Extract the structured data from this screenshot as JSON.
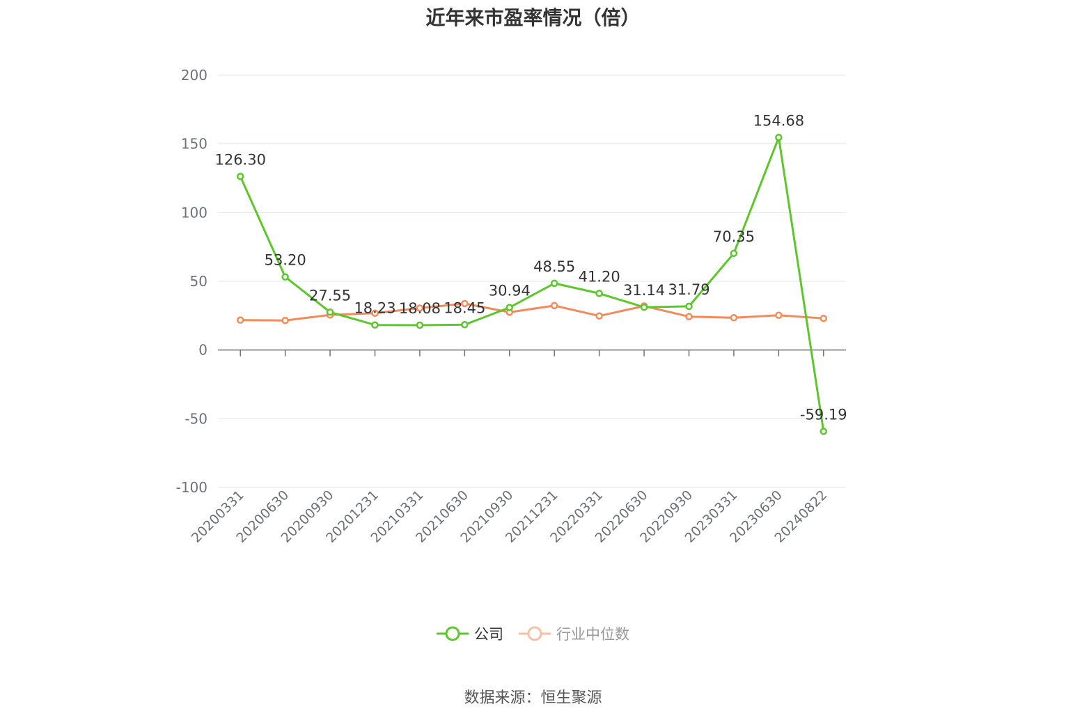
{
  "chart_data": {
    "type": "line",
    "title": "近年来市盈率情况（倍）",
    "categories": [
      "20200331",
      "20200630",
      "20200930",
      "20201231",
      "20210331",
      "20210630",
      "20210930",
      "20211231",
      "20220331",
      "20220630",
      "20220930",
      "20230331",
      "20230630",
      "20240822"
    ],
    "series": [
      {
        "name": "公司",
        "color": "#5cc72b",
        "values": [
          126.3,
          53.2,
          27.55,
          18.23,
          18.08,
          18.45,
          30.94,
          48.55,
          41.2,
          31.14,
          31.79,
          70.35,
          154.68,
          -59.19
        ],
        "labels": [
          "126.30",
          "53.20",
          "27.55",
          "18.23",
          "18.08",
          "18.45",
          "30.94",
          "48.55",
          "41.20",
          "31.14",
          "31.79",
          "70.35",
          "154.68",
          "-59.19"
        ]
      },
      {
        "name": "行业中位数",
        "color": "#f28b5b",
        "values": [
          21.8,
          21.5,
          25.5,
          26.8,
          30.5,
          33.8,
          27.5,
          32.3,
          24.8,
          32.0,
          24.3,
          23.5,
          25.3,
          23.0
        ]
      }
    ],
    "ylim": [
      -100,
      200
    ],
    "yticks": [
      "200",
      "150",
      "100",
      "50",
      "0",
      "-50",
      "-100"
    ],
    "grid": true,
    "legend_position": "bottom"
  },
  "source": "数据来源：恒生聚源"
}
